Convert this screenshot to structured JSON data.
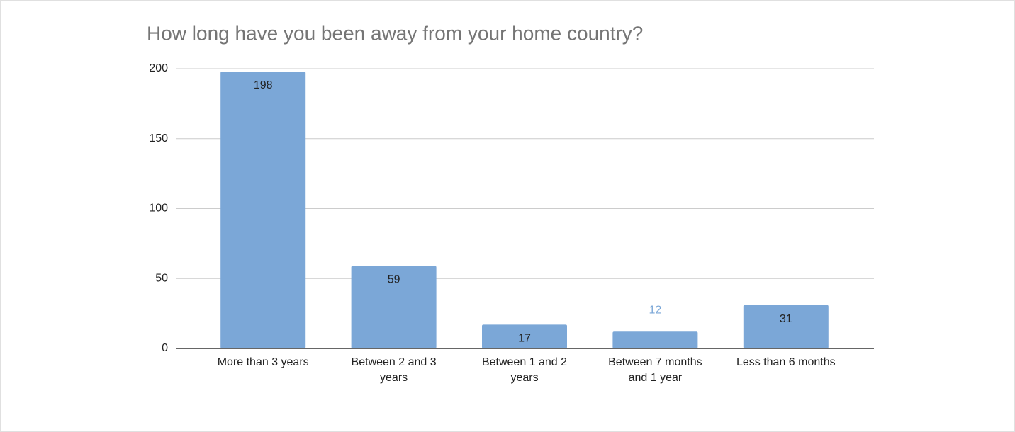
{
  "chart_data": {
    "type": "bar",
    "title": "How long have you been away from your home country?",
    "categories": [
      "More than 3 years",
      "Between 2 and 3 years",
      "Between 1 and 2 years",
      "Between 7 months and 1 year",
      "Less than 6 months"
    ],
    "values": [
      198,
      59,
      17,
      12,
      31
    ],
    "color": "#7ba7d7",
    "ylim": [
      0,
      200
    ],
    "yticks": [
      0,
      50,
      100,
      150,
      200
    ],
    "grid": true
  }
}
